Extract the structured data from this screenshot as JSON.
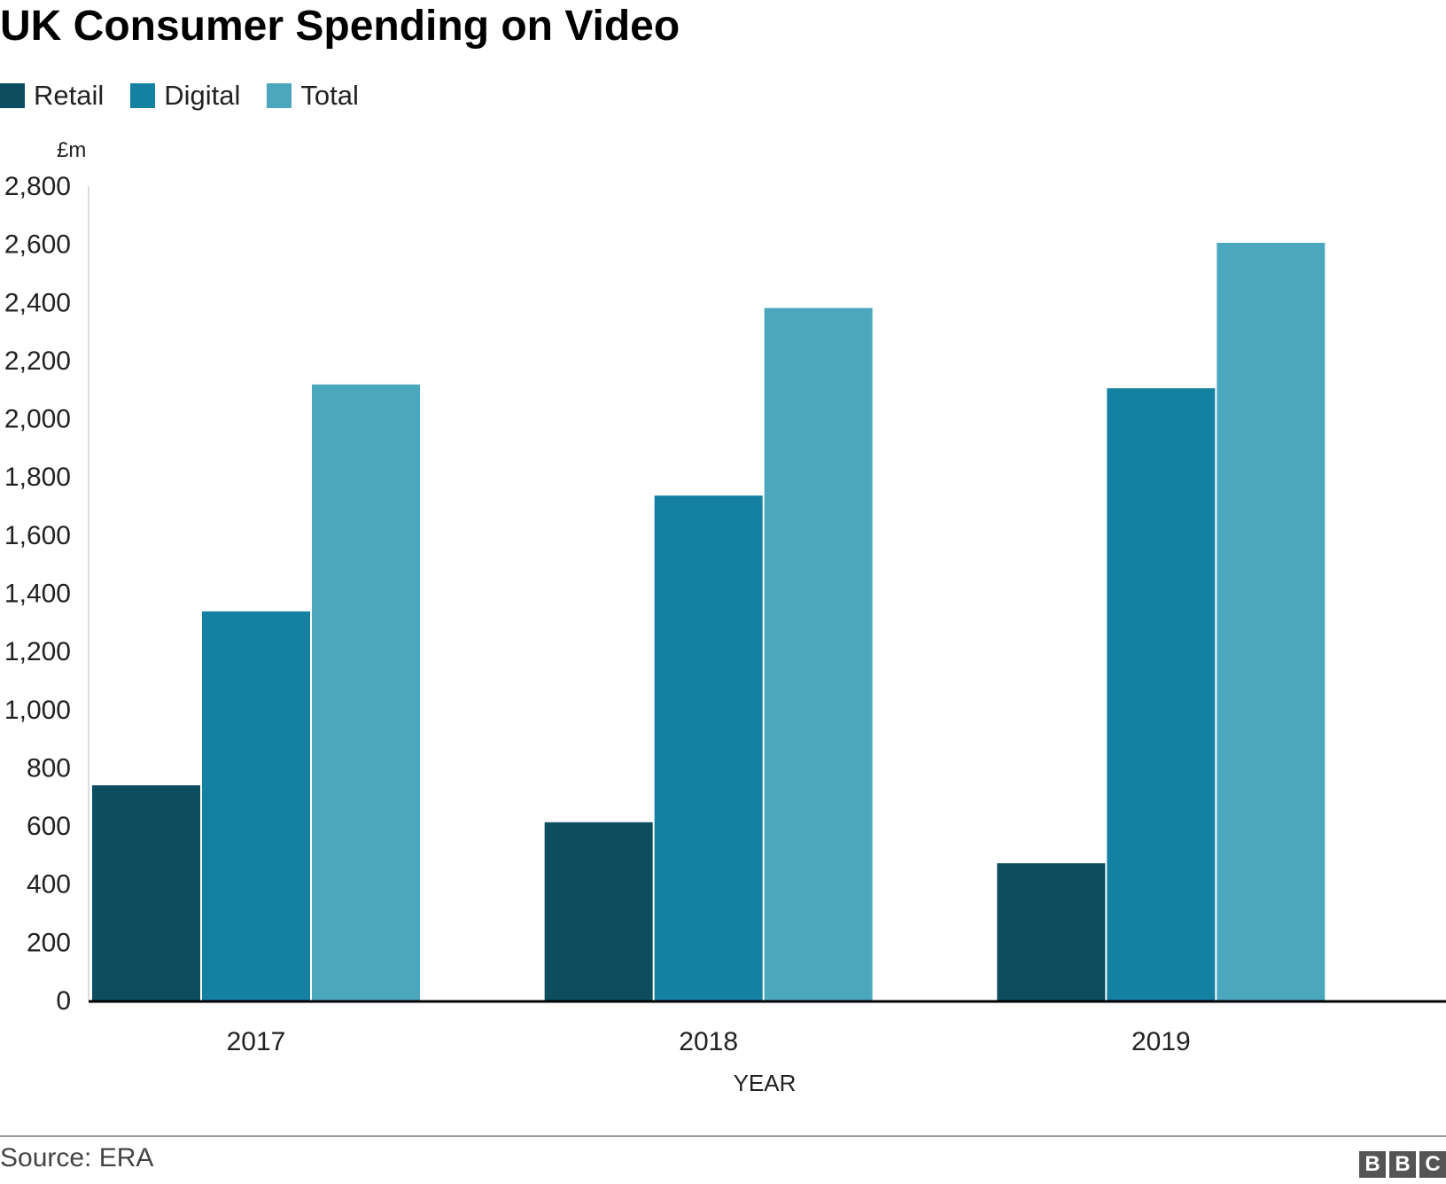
{
  "chart_data": {
    "type": "bar",
    "title": "UK Consumer Spending on Video",
    "xlabel": "YEAR",
    "ylabel": "£m",
    "categories": [
      "2017",
      "2018",
      "2019"
    ],
    "series": [
      {
        "name": "Retail",
        "color": "#0c4e60",
        "values": [
          740,
          613,
          472
        ]
      },
      {
        "name": "Digital",
        "color": "#1480a2",
        "values": [
          1338,
          1736,
          2105
        ]
      },
      {
        "name": "Total",
        "color": "#4ba7bd",
        "values": [
          2118,
          2381,
          2605
        ]
      }
    ],
    "ylim": [
      0,
      2800
    ],
    "yticks": [
      0,
      200,
      400,
      600,
      800,
      1000,
      1200,
      1400,
      1600,
      1800,
      2000,
      2200,
      2400,
      2600,
      2800
    ],
    "ytick_labels": [
      "0",
      "200",
      "400",
      "600",
      "800",
      "1,000",
      "1,200",
      "1,400",
      "1,600",
      "1,800",
      "2,000",
      "2,200",
      "2,400",
      "2,600",
      "2,800"
    ],
    "grid": false,
    "legend": "top-left"
  },
  "footer": {
    "source": "Source: ERA",
    "logo": [
      "B",
      "B",
      "C"
    ]
  }
}
